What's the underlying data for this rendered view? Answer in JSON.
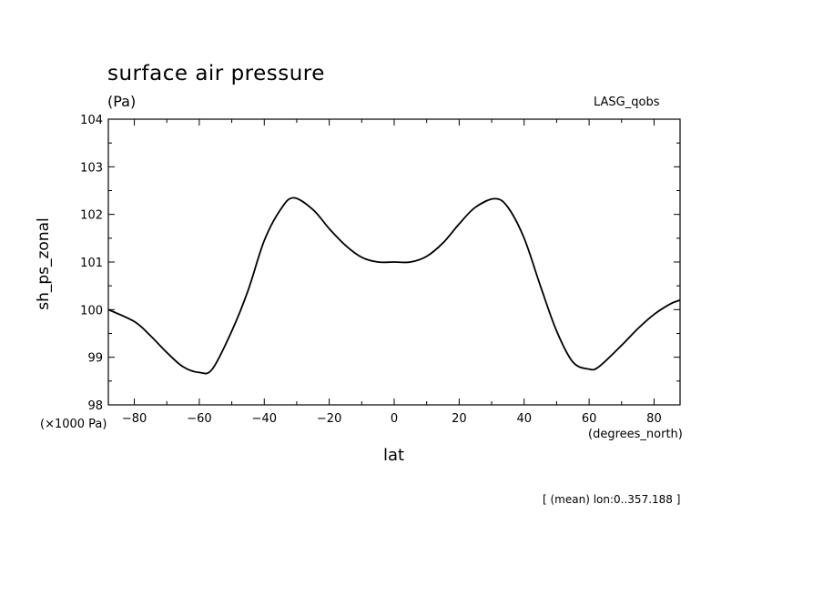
{
  "title": "surface air pressure",
  "units": "(Pa)",
  "source": "LASG_qobs",
  "scale_label": "(×1000 Pa)",
  "x_units": "(degrees_north)",
  "x_label": "lat",
  "y_label": "sh_ps_zonal",
  "note": "[ (mean) lon:0..357.188 ]",
  "chart_data": {
    "type": "line",
    "title": "surface air pressure",
    "xlabel": "lat",
    "ylabel": "sh_ps_zonal",
    "xlim": [
      -88,
      88
    ],
    "ylim": [
      98,
      104
    ],
    "xticks": [
      -80,
      -60,
      -40,
      -20,
      0,
      20,
      40,
      60,
      80
    ],
    "yticks": [
      98,
      99,
      100,
      101,
      102,
      103,
      104
    ],
    "grid": false,
    "x": [
      -88,
      -80,
      -75,
      -70,
      -65,
      -60,
      -56,
      -50,
      -45,
      -40,
      -35,
      -31,
      -25,
      -20,
      -15,
      -10,
      -5,
      0,
      5,
      10,
      15,
      20,
      25,
      31,
      35,
      40,
      45,
      50,
      55,
      60,
      63,
      70,
      75,
      80,
      85,
      88
    ],
    "series": [
      {
        "values": [
          100.0,
          99.75,
          99.45,
          99.1,
          98.8,
          98.68,
          98.75,
          99.55,
          100.4,
          101.45,
          102.1,
          102.35,
          102.1,
          101.7,
          101.35,
          101.1,
          101.0,
          101.0,
          101.0,
          101.12,
          101.4,
          101.8,
          102.15,
          102.33,
          102.15,
          101.5,
          100.5,
          99.55,
          98.9,
          98.75,
          98.8,
          99.25,
          99.6,
          99.9,
          100.12,
          100.2
        ]
      }
    ]
  }
}
